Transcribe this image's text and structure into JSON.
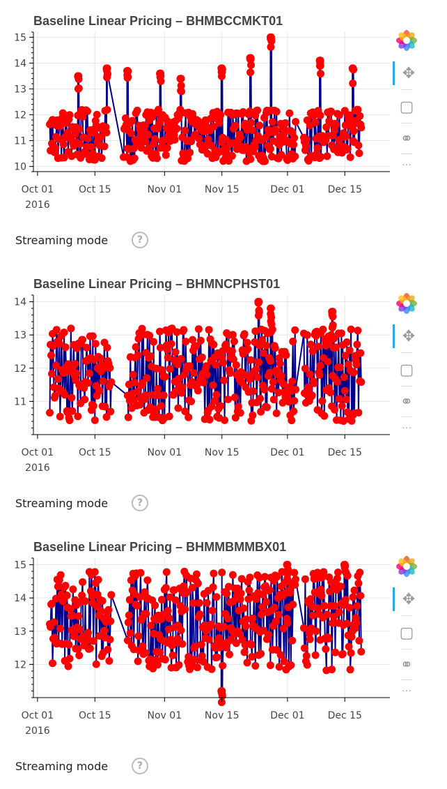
{
  "toolbar_icons": [
    "bokeh-logo-icon",
    "pan-icon",
    "box-zoom-icon",
    "wheel-zoom-icon",
    "more-icon"
  ],
  "streaming": {
    "label": "Streaming mode",
    "help": "?"
  },
  "colors": {
    "line": "#00008b",
    "marker": "#ff0000",
    "grid": "#e5e5e5",
    "toolbar_active": "#26aae1"
  },
  "chart_data": [
    {
      "type": "line",
      "title": "Baseline Linear Pricing – BHMBCCMKT01",
      "x_range": [
        "2016-09-30",
        "2016-12-26"
      ],
      "ylim": [
        9.8,
        15.2
      ],
      "yticks": [
        10,
        11,
        12,
        13,
        14,
        15
      ],
      "xticks": [
        {
          "date": "2016-10-01",
          "label": "Oct 01",
          "sublabel": "2016"
        },
        {
          "date": "2016-10-15",
          "label": "Oct 15",
          "sublabel": ""
        },
        {
          "date": "2016-11-01",
          "label": "Nov 01",
          "sublabel": ""
        },
        {
          "date": "2016-11-15",
          "label": "Nov 15",
          "sublabel": ""
        },
        {
          "date": "2016-12-01",
          "label": "Dec 01",
          "sublabel": ""
        },
        {
          "date": "2016-12-15",
          "label": "Dec 15",
          "sublabel": ""
        }
      ],
      "grid": true,
      "series": [
        {
          "start": "2016-10-04",
          "end": "2016-12-19",
          "low": 10.2,
          "high": 12.2,
          "gaps": [
            [
              "2016-10-18",
              "2016-10-22"
            ],
            [
              "2016-12-03",
              "2016-12-05"
            ]
          ],
          "spikes": [
            {
              "date": "2016-10-11",
              "value": 13.5
            },
            {
              "date": "2016-10-18",
              "value": 13.8
            },
            {
              "date": "2016-10-23",
              "value": 13.7
            },
            {
              "date": "2016-10-31",
              "value": 13.6
            },
            {
              "date": "2016-11-05",
              "value": 13.4
            },
            {
              "date": "2016-11-15",
              "value": 13.8
            },
            {
              "date": "2016-11-22",
              "value": 14.2
            },
            {
              "date": "2016-11-27",
              "value": 15.0
            },
            {
              "date": "2016-12-09",
              "value": 14.1
            },
            {
              "date": "2016-12-17",
              "value": 13.8
            }
          ]
        }
      ]
    },
    {
      "type": "line",
      "title": "Baseline Linear Pricing – BHMNCPHST01",
      "x_range": [
        "2016-09-30",
        "2016-12-26"
      ],
      "ylim": [
        10.0,
        14.2
      ],
      "yticks": [
        11,
        12,
        13,
        14
      ],
      "xticks": [
        {
          "date": "2016-10-01",
          "label": "Oct 01",
          "sublabel": "2016"
        },
        {
          "date": "2016-10-15",
          "label": "Oct 15",
          "sublabel": ""
        },
        {
          "date": "2016-11-01",
          "label": "Nov 01",
          "sublabel": ""
        },
        {
          "date": "2016-11-15",
          "label": "Nov 15",
          "sublabel": ""
        },
        {
          "date": "2016-12-01",
          "label": "Dec 01",
          "sublabel": ""
        },
        {
          "date": "2016-12-15",
          "label": "Dec 15",
          "sublabel": ""
        }
      ],
      "grid": true,
      "series": [
        {
          "start": "2016-10-04",
          "end": "2016-12-19",
          "low": 10.4,
          "high": 13.2,
          "gaps": [
            [
              "2016-10-19",
              "2016-10-23"
            ],
            [
              "2016-12-03",
              "2016-12-05"
            ]
          ],
          "spikes": [
            {
              "date": "2016-11-24",
              "value": 14.0
            },
            {
              "date": "2016-11-27",
              "value": 13.8
            },
            {
              "date": "2016-12-12",
              "value": 13.7
            }
          ]
        }
      ]
    },
    {
      "type": "line",
      "title": "Baseline Linear Pricing – BHMMBMMBX01",
      "x_range": [
        "2016-09-30",
        "2016-12-26"
      ],
      "ylim": [
        11.0,
        15.2
      ],
      "yticks": [
        12,
        13,
        14,
        15
      ],
      "xticks": [
        {
          "date": "2016-10-01",
          "label": "Oct 01",
          "sublabel": "2016"
        },
        {
          "date": "2016-10-15",
          "label": "Oct 15",
          "sublabel": ""
        },
        {
          "date": "2016-11-01",
          "label": "Nov 01",
          "sublabel": ""
        },
        {
          "date": "2016-11-15",
          "label": "Nov 15",
          "sublabel": ""
        },
        {
          "date": "2016-12-01",
          "label": "Dec 01",
          "sublabel": ""
        },
        {
          "date": "2016-12-15",
          "label": "Dec 15",
          "sublabel": ""
        }
      ],
      "grid": true,
      "series": [
        {
          "start": "2016-10-04",
          "end": "2016-12-19",
          "low": 11.8,
          "high": 14.8,
          "gaps": [
            [
              "2016-10-19",
              "2016-10-23"
            ],
            [
              "2016-12-03",
              "2016-12-05"
            ]
          ],
          "spikes": [
            {
              "date": "2016-11-15",
              "value": 11.2
            },
            {
              "date": "2016-12-01",
              "value": 15.0
            },
            {
              "date": "2016-12-15",
              "value": 15.0
            }
          ]
        }
      ]
    }
  ]
}
